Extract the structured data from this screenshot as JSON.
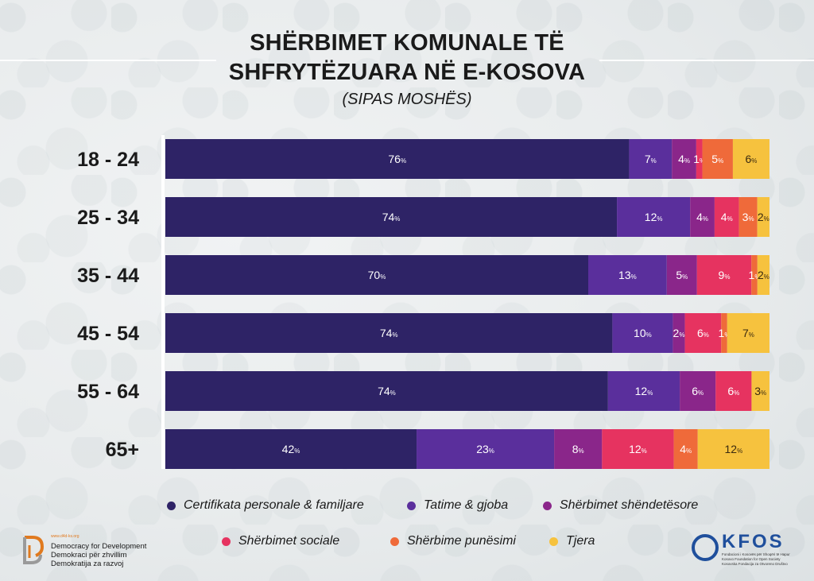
{
  "title_line1": "SHËRBIMET KOMUNALE TË",
  "title_line2": "SHFRYTËZUARA NË E-KOSOVA",
  "subtitle": "(SIPAS MOSHËS)",
  "colors": {
    "certifikata": "#2e2366",
    "tatime": "#5a2f9c",
    "shendetesore": "#8a268a",
    "sociale": "#e63360",
    "punesimi": "#ef6a3a",
    "tjera": "#f6c23e"
  },
  "chart_data": {
    "type": "bar",
    "orientation": "horizontal",
    "stacked": true,
    "unit": "%",
    "categories": [
      "18 - 24",
      "25 - 34",
      "35 - 44",
      "45 - 54",
      "55 - 64",
      "65+"
    ],
    "series": [
      {
        "name": "Certifikata personale & familjare",
        "color": "#2e2366",
        "values": [
          76,
          74,
          70,
          74,
          74,
          42
        ]
      },
      {
        "name": "Tatime & gjoba",
        "color": "#5a2f9c",
        "values": [
          7,
          12,
          13,
          10,
          12,
          23
        ]
      },
      {
        "name": "Shërbimet shëndetësore",
        "color": "#8a268a",
        "values": [
          4,
          4,
          5,
          2,
          6,
          8
        ]
      },
      {
        "name": "Shërbimet sociale",
        "color": "#e63360",
        "values": [
          1,
          4,
          9,
          6,
          6,
          12
        ]
      },
      {
        "name": "Shërbime punësimi",
        "color": "#ef6a3a",
        "values": [
          5,
          3,
          1,
          1,
          0,
          4
        ]
      },
      {
        "name": "Tjera",
        "color": "#f6c23e",
        "values": [
          6,
          2,
          2,
          7,
          3,
          12
        ]
      }
    ],
    "legend_placement": "bottom"
  },
  "logos": {
    "d4d_url": "www.d4d-ks.org",
    "d4d_lines": [
      "Democracy for Development",
      "Demokraci për zhvillim",
      "Demokratija za razvoj"
    ],
    "kfos_name": "KFOS",
    "kfos_lines": [
      "Fondacioni i Kosovës për Shoqëri të Hapur",
      "Kosovo Foundation for Open Society",
      "Kosovska Fondacija za Otvoreno Društvo"
    ]
  }
}
